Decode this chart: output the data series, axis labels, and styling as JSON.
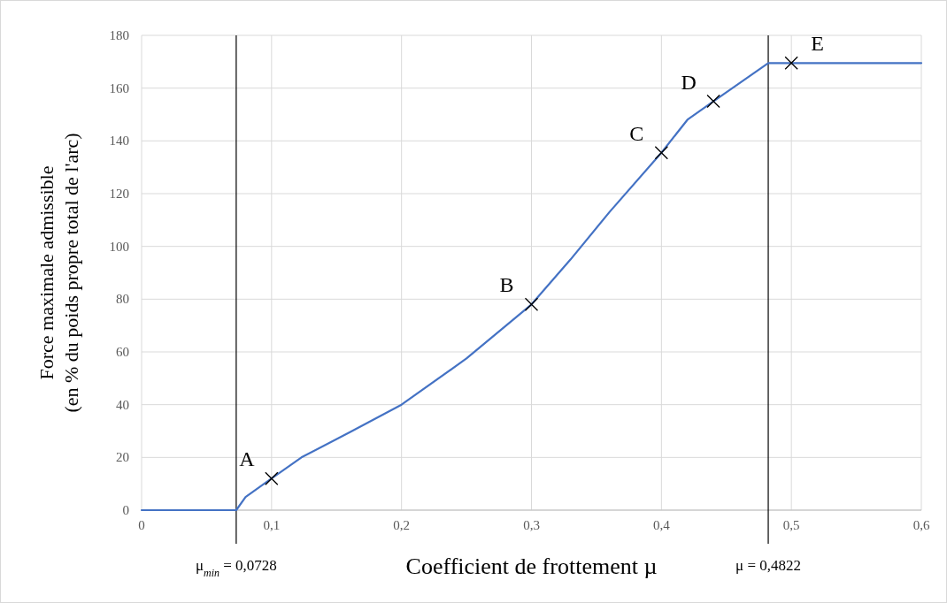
{
  "chart_data": {
    "type": "line",
    "xlabel": "Coefficient de frottement µ",
    "ylabel": "Force maximale admissible\n(en % du poids propre total de l'arc)",
    "xlim": [
      0,
      0.6
    ],
    "ylim": [
      0,
      180
    ],
    "xticks": [
      0,
      {
        "value": 0.1,
        "label": "0,1"
      },
      {
        "value": 0.2,
        "label": "0,2"
      },
      {
        "value": 0.3,
        "label": "0,3"
      },
      {
        "value": 0.4,
        "label": "0,4"
      },
      {
        "value": 0.5,
        "label": "0,5"
      },
      {
        "value": 0.6,
        "label": "0,6"
      }
    ],
    "yticks": [
      0,
      20,
      40,
      60,
      80,
      100,
      120,
      140,
      160,
      180
    ],
    "grid": true,
    "series": [
      {
        "color": "#4472c4",
        "marker": "none",
        "x": [
          0,
          0.0728,
          0.08,
          0.1,
          0.123,
          0.16,
          0.2,
          0.25,
          0.3,
          0.33,
          0.36,
          0.4,
          0.42,
          0.44,
          0.4822,
          0.6
        ],
        "values": [
          0,
          0,
          5,
          12,
          20,
          29.5,
          40,
          57.5,
          78,
          95,
          113,
          135.5,
          148,
          155,
          169.5,
          169.5
        ]
      },
      {
        "type": "scatter",
        "color": "#000000",
        "marker": "cross",
        "x": [
          0.1,
          0.3,
          0.4,
          0.44,
          0.5
        ],
        "values": [
          12,
          78,
          135.5,
          155,
          169.5
        ]
      }
    ],
    "annotations": [
      {
        "text": "A",
        "x": 0.1,
        "y": 12
      },
      {
        "text": "B",
        "x": 0.3,
        "y": 78
      },
      {
        "text": "C",
        "x": 0.4,
        "y": 135.5
      },
      {
        "text": "D",
        "x": 0.44,
        "y": 155
      },
      {
        "text": "E",
        "x": 0.5,
        "y": 169.5
      }
    ],
    "ref_lines": [
      {
        "axis": "x",
        "value": 0.0728,
        "label": "μ$_{min}$ = 0,0728",
        "color": "#000000"
      },
      {
        "axis": "x",
        "value": 0.4822,
        "label": "μ = 0,4822",
        "color": "#000000"
      }
    ]
  }
}
